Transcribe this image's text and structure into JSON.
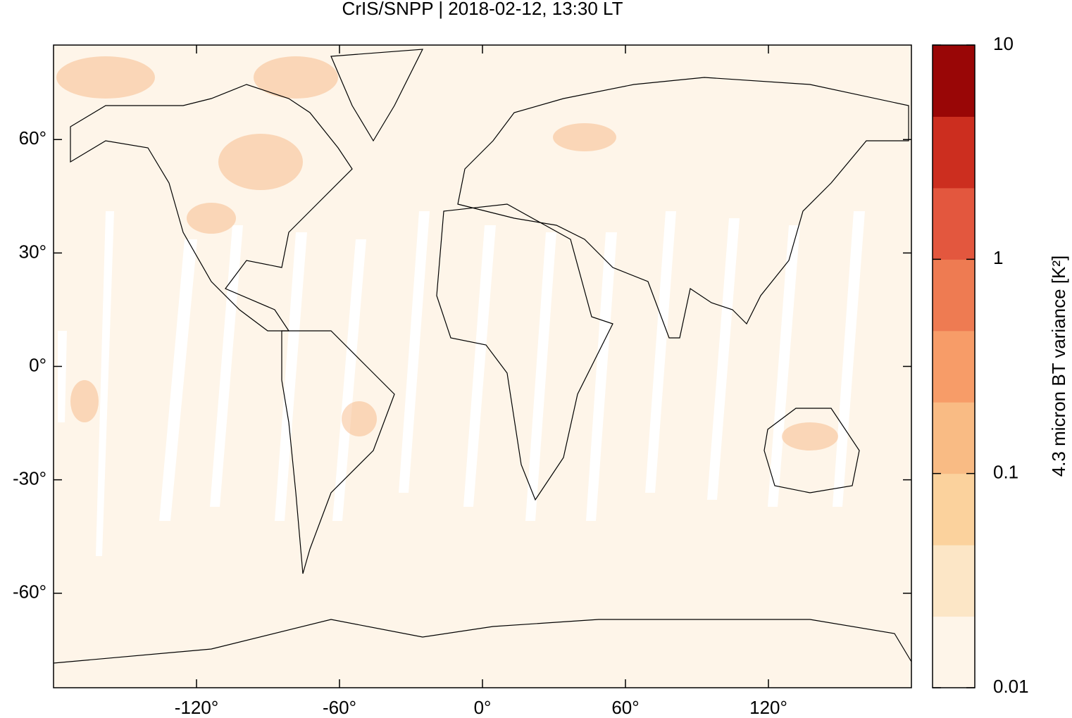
{
  "chart_data": {
    "type": "map",
    "title": "CrIS/SNPP | 2018-02-12, 13:30 LT",
    "xlim": [
      -180,
      180
    ],
    "ylim": [
      -85,
      85
    ],
    "xticks": [
      {
        "value": -120,
        "label": "-120°"
      },
      {
        "value": -60,
        "label": "-60°"
      },
      {
        "value": 0,
        "label": "0°"
      },
      {
        "value": 60,
        "label": "60°"
      },
      {
        "value": 120,
        "label": "120°"
      }
    ],
    "yticks": [
      {
        "value": -60,
        "label": "-60°"
      },
      {
        "value": -30,
        "label": "-30°"
      },
      {
        "value": 0,
        "label": "0°"
      },
      {
        "value": 30,
        "label": "30°"
      },
      {
        "value": 60,
        "label": "60°"
      }
    ],
    "colorbar": {
      "label": "4.3 micron BT variance [K²]",
      "scale": "log",
      "ylim": [
        0.01,
        10
      ],
      "yticks": [
        0.01,
        0.1,
        1,
        10
      ],
      "colors": [
        "#fef5e9",
        "#fce6c6",
        "#fbd29d",
        "#f9bb84",
        "#f79c68",
        "#ee7b52",
        "#e3573e",
        "#cc2e1f",
        "#990606"
      ]
    }
  }
}
